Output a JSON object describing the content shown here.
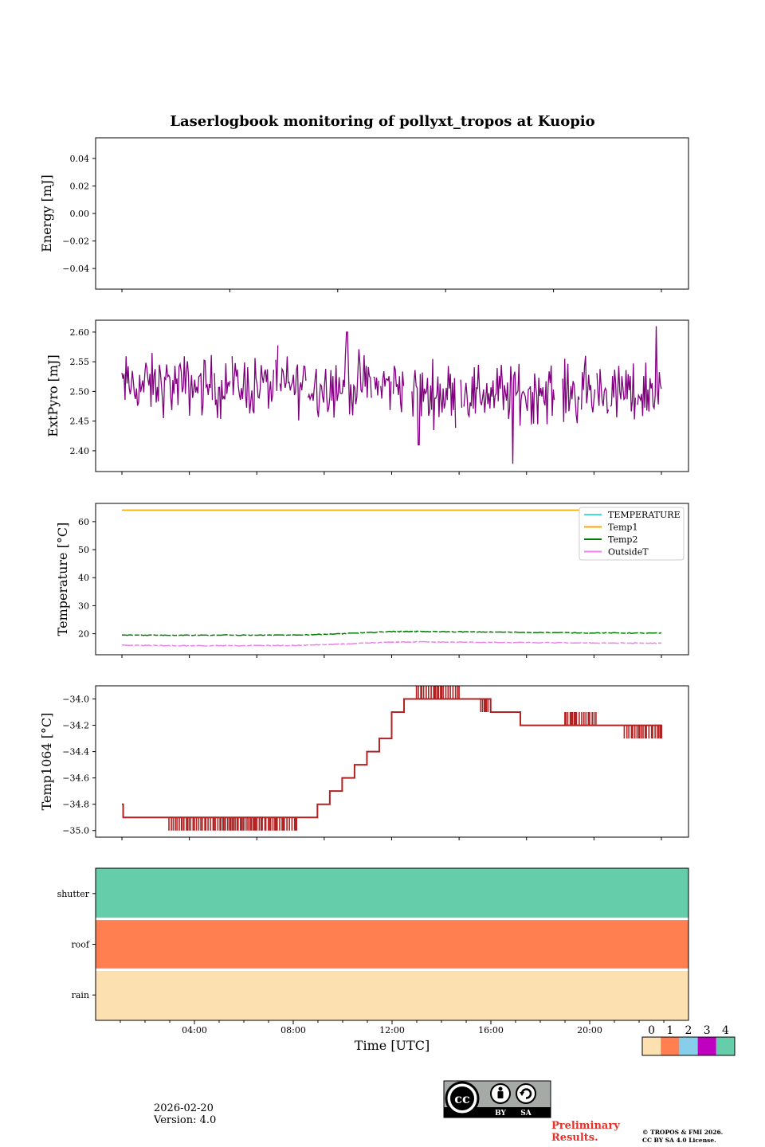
{
  "chart_data": {
    "title": "Laserlogbook monitoring of pollyxt_tropos at Kuopio",
    "xlabel": "Time [UTC]",
    "xtick_labels": [
      "04:00",
      "08:00",
      "12:00",
      "16:00",
      "20:00"
    ],
    "x_range_hours": [
      0,
      24
    ],
    "panels": [
      {
        "type": "line",
        "ylabel": "Energy [mJ]",
        "ylim": [
          -0.055,
          0.055
        ],
        "yticks": [
          0.04,
          0.02,
          0.0,
          -0.02,
          -0.04
        ],
        "ytick_labels": [
          "0.04",
          "0.02",
          "0.00",
          "−0.02",
          "−0.04"
        ],
        "series": []
      },
      {
        "type": "line",
        "ylabel": "ExtPyro [mJ]",
        "ylim": [
          2.365,
          2.62
        ],
        "yticks": [
          2.6,
          2.55,
          2.5,
          2.45,
          2.4
        ],
        "ytick_labels": [
          "2.60",
          "2.55",
          "2.50",
          "2.45",
          "2.40"
        ],
        "series": [
          {
            "name": "ExtPyro",
            "color": "#800080",
            "x_start": 1.1,
            "x_end": 22.9,
            "count": 520,
            "mean": 2.51,
            "spread": 0.035,
            "spikes": [
              [
                22.7,
                2.61
              ],
              [
                16.9,
                2.378
              ],
              [
                10.2,
                2.6
              ],
              [
                13.1,
                2.41
              ]
            ],
            "gaps": [
              [
                12.5,
                12.8
              ],
              [
                18.6,
                18.9
              ]
            ]
          }
        ]
      },
      {
        "type": "line",
        "ylabel": "Temperature [°C]",
        "ylim": [
          12.5,
          66.5
        ],
        "yticks": [
          60,
          50,
          40,
          30,
          20
        ],
        "ytick_labels": [
          "60",
          "50",
          "40",
          "30",
          "20"
        ],
        "legend_position": "upper-right",
        "series": [
          {
            "name": "TEMPERATURE",
            "color": "#40e0e0",
            "x": [],
            "values": []
          },
          {
            "name": "Temp1",
            "color": "#ffa500",
            "x": [
              1.1,
              22.9
            ],
            "values": [
              64.1,
              64.1
            ]
          },
          {
            "name": "Temp2",
            "color": "#008000",
            "x": [
              1.1,
              4,
              8,
              10,
              12,
              13,
              16,
              20,
              22.9
            ],
            "values": [
              19.5,
              19.5,
              19.5,
              20.0,
              20.8,
              20.8,
              20.6,
              20.3,
              20.2
            ]
          },
          {
            "name": "OutsideT",
            "color": "#ee82ee",
            "x": [
              1.1,
              4,
              8,
              10,
              12,
              13,
              16,
              20,
              22.9
            ],
            "values": [
              15.9,
              15.7,
              15.8,
              16.3,
              17.0,
              17.1,
              16.9,
              16.7,
              16.6
            ]
          }
        ]
      },
      {
        "type": "line",
        "ylabel": "Temp1064 [°C]",
        "ylim": [
          -35.05,
          -33.9
        ],
        "yticks": [
          -34.0,
          -34.2,
          -34.4,
          -34.6,
          -34.8,
          -35.0
        ],
        "ytick_labels": [
          "−34.0",
          "−34.2",
          "−34.4",
          "−34.6",
          "−34.8",
          "−35.0"
        ],
        "series": [
          {
            "name": "Temp1064",
            "color": "#b22222",
            "x": [
              1.1,
              1.15,
              8.5,
              9.0,
              9.5,
              10.0,
              10.5,
              11.0,
              11.5,
              12.0,
              12.5,
              13.0,
              15.6,
              16.0,
              16.4,
              17.2,
              22.4,
              22.9
            ],
            "values": [
              -34.8,
              -34.9,
              -34.9,
              -34.8,
              -34.7,
              -34.6,
              -34.5,
              -34.4,
              -34.3,
              -34.1,
              -34.0,
              -34.0,
              -34.0,
              -34.1,
              -34.1,
              -34.2,
              -34.2,
              -34.3
            ],
            "noise_segments": [
              [
                3.0,
                8.2,
                -35.0
              ],
              [
                13.0,
                14.8,
                -33.9
              ],
              [
                15.6,
                16.5,
                -34.1
              ],
              [
                19.0,
                20.3,
                -34.1
              ],
              [
                21.4,
                22.9,
                -34.3
              ]
            ]
          }
        ]
      },
      {
        "type": "heatmap",
        "rows": [
          "shutter",
          "roof",
          "rain"
        ],
        "row_status": [
          4,
          1,
          0
        ]
      }
    ],
    "status_legend": {
      "labels": [
        "0",
        "1",
        "2",
        "3",
        "4"
      ],
      "colors": [
        "#fde0af",
        "#ff7f50",
        "#87ceeb",
        "#c000c0",
        "#66cdaa"
      ]
    }
  },
  "footer": {
    "date": "2026-02-20",
    "version": "Version: 4.0",
    "preliminary": [
      "Preliminary",
      "Results."
    ],
    "copyright": [
      "© TROPOS & FMI 2026.",
      "CC BY SA 4.0 License."
    ],
    "license_badge": {
      "by": "BY",
      "sa": "SA"
    }
  }
}
